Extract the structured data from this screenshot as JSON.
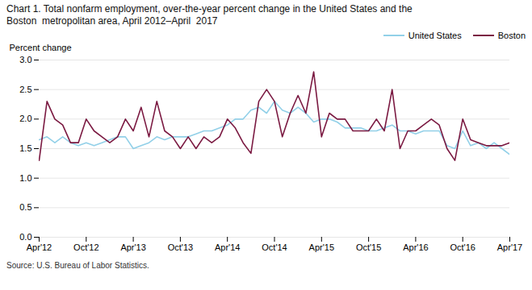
{
  "chart_data": {
    "type": "line",
    "title": "Chart 1. Total nonfarm employment, over-the-year percent change in the United States and the",
    "subtitle": "Boston  metropolitan area, April 2012–April  2017",
    "y_label": "Percent change",
    "caption": "Source: U.S. Bureau of Labor Statistics.",
    "x": [
      0,
      1,
      2,
      3,
      4,
      5,
      6,
      7,
      8,
      9,
      10,
      11,
      12,
      13,
      14,
      15,
      16,
      17,
      18,
      19,
      20,
      21,
      22,
      23,
      24,
      25,
      26,
      27,
      28,
      29,
      30,
      31,
      32,
      33,
      34,
      35,
      36,
      37,
      38,
      39,
      40,
      41,
      42,
      43,
      44,
      45,
      46,
      47,
      48,
      49,
      50,
      51,
      52,
      53,
      54,
      55,
      56,
      57,
      58,
      59,
      60
    ],
    "xlim": [
      0,
      60
    ],
    "xticks": [
      {
        "value": 0,
        "label": "Apr'12"
      },
      {
        "value": 6,
        "label": "Oct'12"
      },
      {
        "value": 12,
        "label": "Apr'13"
      },
      {
        "value": 18,
        "label": "Oct'13"
      },
      {
        "value": 24,
        "label": "Apr'14"
      },
      {
        "value": 30,
        "label": "Oct'14"
      },
      {
        "value": 36,
        "label": "Apr'15"
      },
      {
        "value": 42,
        "label": "Oct'15"
      },
      {
        "value": 48,
        "label": "Apr'16"
      },
      {
        "value": 54,
        "label": "Oct'16"
      },
      {
        "value": 60,
        "label": "Apr'17"
      }
    ],
    "ylim": [
      0.0,
      3.0
    ],
    "yticks": [
      {
        "value": 0.0,
        "label": "0.0"
      },
      0.5,
      {
        "value": 1.0,
        "label": "1.0"
      },
      1.5,
      {
        "value": 2.0,
        "label": "2.0"
      },
      2.5,
      {
        "value": 3.0,
        "label": "3.0"
      }
    ],
    "grid": "y",
    "legend": "upper right",
    "series": [
      {
        "name": "United States",
        "color": "#92d0e8",
        "values": [
          1.65,
          1.7,
          1.6,
          1.7,
          1.6,
          1.55,
          1.6,
          1.55,
          1.6,
          1.65,
          1.7,
          1.7,
          1.5,
          1.55,
          1.6,
          1.7,
          1.65,
          1.7,
          1.7,
          1.7,
          1.75,
          1.8,
          1.8,
          1.85,
          1.9,
          2.0,
          2.0,
          2.15,
          2.2,
          2.1,
          2.3,
          2.15,
          2.1,
          2.2,
          2.1,
          1.95,
          2.0,
          2.0,
          1.95,
          1.85,
          1.85,
          1.85,
          1.8,
          1.8,
          1.85,
          1.9,
          1.8,
          1.8,
          1.75,
          1.8,
          1.8,
          1.8,
          1.55,
          1.5,
          1.8,
          1.55,
          1.6,
          1.5,
          1.6,
          1.5,
          1.4
        ]
      },
      {
        "name": "Boston",
        "color": "#7b1a42",
        "values": [
          1.3,
          2.3,
          2.0,
          1.9,
          1.6,
          1.6,
          2.0,
          1.8,
          1.7,
          1.6,
          1.7,
          2.0,
          1.8,
          2.2,
          1.7,
          2.3,
          1.8,
          1.7,
          1.5,
          1.7,
          1.5,
          1.7,
          1.6,
          1.7,
          2.0,
          1.85,
          1.6,
          1.42,
          2.3,
          2.5,
          2.3,
          1.7,
          2.1,
          2.4,
          2.1,
          2.8,
          1.7,
          2.1,
          2.0,
          2.0,
          1.8,
          1.8,
          1.8,
          2.0,
          1.8,
          2.5,
          1.5,
          1.8,
          1.8,
          1.9,
          2.0,
          1.9,
          1.5,
          1.3,
          2.0,
          1.65,
          1.6,
          1.55,
          1.55,
          1.55,
          1.6
        ]
      }
    ]
  }
}
